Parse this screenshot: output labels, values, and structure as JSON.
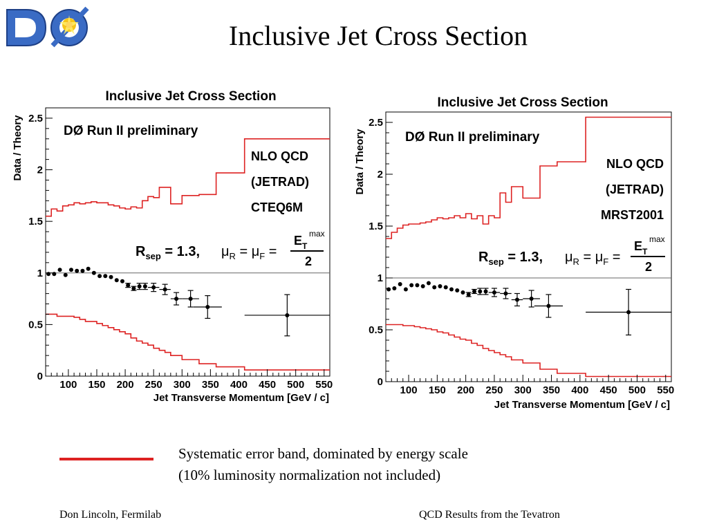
{
  "slide": {
    "title": "Inclusive Jet Cross Section",
    "caption_line1": "Systematic error band, dominated by energy scale",
    "caption_line2": "(10% luminosity normalization not included)",
    "footer_left": "Don Lincoln, Fermilab",
    "footer_right": "QCD Results from the Tevatron",
    "logo_text": "DØ"
  },
  "colors": {
    "band": "#dd2222",
    "data": "#000000",
    "logo_blue": "#3a6bc4"
  },
  "chart_data": [
    {
      "type": "scatter",
      "title": "Inclusive Jet Cross Section",
      "xlabel": "Jet Transverse Momentum [GeV / c]",
      "ylabel": "Data / Theory",
      "xlim": [
        60,
        560
      ],
      "ylim": [
        0,
        2.6
      ],
      "x_ticks": [
        100,
        150,
        200,
        250,
        300,
        350,
        400,
        450,
        500,
        550
      ],
      "y_ticks": [
        0,
        0.5,
        1,
        1.5,
        2,
        2.5
      ],
      "y_tick_labels": [
        "0",
        "0.5",
        "1",
        "1.5",
        "2",
        "2.5"
      ],
      "annotations": {
        "experiment": "DØ Run II preliminary",
        "theory_line1": "NLO QCD",
        "theory_line2": "(JETRAD)",
        "theory_line3": "CTEQ6M",
        "rsep_R": "R",
        "rsep_sub": "sep",
        "rsep_val": " = 1.3,",
        "mu_r": "μ",
        "mu_r_sub": "R",
        "mu_eq": " = ",
        "mu_f": "μ",
        "mu_f_sub": "F",
        "mu_eq2": " =",
        "et_E": "E",
        "et_sub": "T",
        "et_sup": "max",
        "denominator": "2"
      },
      "reference_line": 1,
      "band_edges": [
        60,
        70,
        80,
        90,
        100,
        110,
        120,
        130,
        140,
        150,
        160,
        170,
        180,
        190,
        200,
        210,
        220,
        230,
        240,
        250,
        260,
        270,
        280,
        300,
        330,
        360,
        410,
        560
      ],
      "band_upper": [
        1.55,
        1.62,
        1.6,
        1.65,
        1.66,
        1.68,
        1.67,
        1.68,
        1.69,
        1.68,
        1.68,
        1.66,
        1.65,
        1.63,
        1.62,
        1.64,
        1.63,
        1.7,
        1.74,
        1.73,
        1.83,
        1.83,
        1.67,
        1.75,
        1.76,
        1.97,
        2.3
      ],
      "band_lower": [
        0.6,
        0.6,
        0.58,
        0.58,
        0.58,
        0.57,
        0.55,
        0.53,
        0.53,
        0.51,
        0.49,
        0.47,
        0.45,
        0.43,
        0.41,
        0.37,
        0.34,
        0.32,
        0.3,
        0.27,
        0.25,
        0.23,
        0.2,
        0.16,
        0.12,
        0.09,
        0.06
      ],
      "points": [
        {
          "x": 65,
          "y": 0.99,
          "err": 0.01,
          "xerr": 5
        },
        {
          "x": 75,
          "y": 0.99,
          "err": 0.01,
          "xerr": 5
        },
        {
          "x": 85,
          "y": 1.03,
          "err": 0.01,
          "xerr": 5
        },
        {
          "x": 95,
          "y": 0.98,
          "err": 0.01,
          "xerr": 5
        },
        {
          "x": 105,
          "y": 1.03,
          "err": 0.01,
          "xerr": 5
        },
        {
          "x": 115,
          "y": 1.02,
          "err": 0.01,
          "xerr": 5
        },
        {
          "x": 125,
          "y": 1.02,
          "err": 0.01,
          "xerr": 5
        },
        {
          "x": 135,
          "y": 1.04,
          "err": 0.01,
          "xerr": 5
        },
        {
          "x": 145,
          "y": 1.0,
          "err": 0.01,
          "xerr": 5
        },
        {
          "x": 155,
          "y": 0.97,
          "err": 0.01,
          "xerr": 5
        },
        {
          "x": 165,
          "y": 0.97,
          "err": 0.01,
          "xerr": 5
        },
        {
          "x": 175,
          "y": 0.96,
          "err": 0.01,
          "xerr": 5
        },
        {
          "x": 185,
          "y": 0.93,
          "err": 0.01,
          "xerr": 5
        },
        {
          "x": 195,
          "y": 0.92,
          "err": 0.01,
          "xerr": 5
        },
        {
          "x": 205,
          "y": 0.88,
          "err": 0.02,
          "xerr": 5
        },
        {
          "x": 215,
          "y": 0.85,
          "err": 0.02,
          "xerr": 5
        },
        {
          "x": 225,
          "y": 0.87,
          "err": 0.03,
          "xerr": 5
        },
        {
          "x": 235,
          "y": 0.87,
          "err": 0.03,
          "xerr": 5
        },
        {
          "x": 250,
          "y": 0.86,
          "err": 0.04,
          "xerr": 10
        },
        {
          "x": 270,
          "y": 0.84,
          "err": 0.05,
          "xerr": 10
        },
        {
          "x": 290,
          "y": 0.75,
          "err": 0.06,
          "xerr": 10
        },
        {
          "x": 315,
          "y": 0.75,
          "err": 0.08,
          "xerr": 15
        },
        {
          "x": 345,
          "y": 0.67,
          "err": 0.11,
          "xerr": 25
        },
        {
          "x": 485,
          "y": 0.59,
          "err": 0.2,
          "xerr": 75
        }
      ]
    },
    {
      "type": "scatter",
      "title": "Inclusive Jet Cross Section",
      "xlabel": "Jet Transverse Momentum [GeV / c]",
      "ylabel": "Data / Theory",
      "xlim": [
        60,
        560
      ],
      "ylim": [
        0,
        2.6
      ],
      "x_ticks": [
        100,
        150,
        200,
        250,
        300,
        350,
        400,
        450,
        500,
        550
      ],
      "y_ticks": [
        0,
        0.5,
        1,
        1.5,
        2,
        2.5
      ],
      "y_tick_labels": [
        "0",
        "0.5",
        "1",
        "1.5",
        "2",
        "2.5"
      ],
      "annotations": {
        "experiment": "DØ Run II preliminary",
        "theory_line1": "NLO QCD",
        "theory_line2": "(JETRAD)",
        "theory_line3": "MRST2001",
        "rsep_R": "R",
        "rsep_sub": "sep",
        "rsep_val": " = 1.3,",
        "mu_r": "μ",
        "mu_r_sub": "R",
        "mu_eq": " = ",
        "mu_f": "μ",
        "mu_f_sub": "F",
        "mu_eq2": " =",
        "et_E": "E",
        "et_sub": "T",
        "et_sup": "max",
        "denominator": "2"
      },
      "reference_line": 1,
      "band_edges": [
        60,
        70,
        80,
        90,
        100,
        110,
        120,
        130,
        140,
        150,
        160,
        170,
        180,
        190,
        200,
        210,
        220,
        230,
        240,
        250,
        260,
        270,
        280,
        300,
        330,
        360,
        410,
        560
      ],
      "band_upper": [
        1.38,
        1.44,
        1.48,
        1.51,
        1.52,
        1.52,
        1.53,
        1.54,
        1.56,
        1.58,
        1.57,
        1.58,
        1.6,
        1.58,
        1.62,
        1.57,
        1.6,
        1.52,
        1.6,
        1.58,
        1.82,
        1.73,
        1.88,
        1.77,
        2.08,
        2.12,
        2.55
      ],
      "band_lower": [
        0.55,
        0.55,
        0.55,
        0.54,
        0.54,
        0.53,
        0.52,
        0.51,
        0.5,
        0.48,
        0.47,
        0.45,
        0.43,
        0.41,
        0.4,
        0.37,
        0.35,
        0.32,
        0.3,
        0.28,
        0.26,
        0.24,
        0.21,
        0.18,
        0.12,
        0.08,
        0.05
      ],
      "points": [
        {
          "x": 65,
          "y": 0.89,
          "err": 0.01,
          "xerr": 5
        },
        {
          "x": 75,
          "y": 0.9,
          "err": 0.01,
          "xerr": 5
        },
        {
          "x": 85,
          "y": 0.94,
          "err": 0.01,
          "xerr": 5
        },
        {
          "x": 95,
          "y": 0.89,
          "err": 0.01,
          "xerr": 5
        },
        {
          "x": 105,
          "y": 0.93,
          "err": 0.01,
          "xerr": 5
        },
        {
          "x": 115,
          "y": 0.93,
          "err": 0.01,
          "xerr": 5
        },
        {
          "x": 125,
          "y": 0.92,
          "err": 0.01,
          "xerr": 5
        },
        {
          "x": 135,
          "y": 0.95,
          "err": 0.01,
          "xerr": 5
        },
        {
          "x": 145,
          "y": 0.91,
          "err": 0.01,
          "xerr": 5
        },
        {
          "x": 155,
          "y": 0.92,
          "err": 0.01,
          "xerr": 5
        },
        {
          "x": 165,
          "y": 0.91,
          "err": 0.01,
          "xerr": 5
        },
        {
          "x": 175,
          "y": 0.89,
          "err": 0.01,
          "xerr": 5
        },
        {
          "x": 185,
          "y": 0.88,
          "err": 0.01,
          "xerr": 5
        },
        {
          "x": 195,
          "y": 0.86,
          "err": 0.01,
          "xerr": 5
        },
        {
          "x": 205,
          "y": 0.84,
          "err": 0.02,
          "xerr": 5
        },
        {
          "x": 215,
          "y": 0.87,
          "err": 0.02,
          "xerr": 5
        },
        {
          "x": 225,
          "y": 0.87,
          "err": 0.03,
          "xerr": 5
        },
        {
          "x": 235,
          "y": 0.87,
          "err": 0.03,
          "xerr": 5
        },
        {
          "x": 250,
          "y": 0.86,
          "err": 0.04,
          "xerr": 10
        },
        {
          "x": 270,
          "y": 0.85,
          "err": 0.05,
          "xerr": 10
        },
        {
          "x": 290,
          "y": 0.79,
          "err": 0.06,
          "xerr": 10
        },
        {
          "x": 315,
          "y": 0.8,
          "err": 0.08,
          "xerr": 15
        },
        {
          "x": 345,
          "y": 0.73,
          "err": 0.11,
          "xerr": 25
        },
        {
          "x": 485,
          "y": 0.67,
          "err": 0.22,
          "xerr": 75
        }
      ]
    }
  ]
}
